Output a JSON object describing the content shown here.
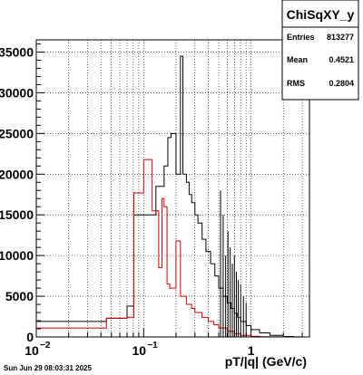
{
  "chart_data": {
    "type": "histogram",
    "x_scale": "log",
    "xlim": [
      0.01,
      3.5
    ],
    "ylim": [
      0,
      36500
    ],
    "xlabel": "pT/|q| (GeV/c)",
    "ylabel": "",
    "x_ticks": [
      {
        "value": 0.01,
        "label": "10",
        "exponent": "−2"
      },
      {
        "value": 0.1,
        "label": "10",
        "exponent": "−1"
      },
      {
        "value": 1,
        "label": "1",
        "exponent": ""
      }
    ],
    "y_ticks": [
      0,
      5000,
      10000,
      15000,
      20000,
      25000,
      30000,
      35000
    ],
    "y_tick_labels": [
      "0",
      "5000",
      "10000",
      "15000",
      "20000",
      "25000",
      "30000",
      "35000"
    ],
    "grid": true,
    "stats_box": {
      "title": "ChiSqXY_y",
      "rows": [
        {
          "label": "Entries",
          "value": "813277"
        },
        {
          "label": "Mean",
          "value": "0.4521"
        },
        {
          "label": "RMS",
          "value": "0.2804"
        }
      ]
    },
    "series": [
      {
        "color": "#000000",
        "edges": [
          0.01,
          0.045,
          0.07,
          0.081,
          0.1,
          0.13,
          0.155,
          0.168,
          0.18,
          0.2,
          0.22,
          0.232,
          0.25,
          0.265,
          0.28,
          0.3,
          0.32,
          0.35,
          0.38,
          0.42,
          0.46,
          0.5,
          0.55,
          0.6,
          0.65,
          0.7,
          0.75,
          0.8,
          0.9,
          1.0,
          1.2,
          1.5,
          2.0,
          2.5,
          3.0
        ],
        "values": [
          1900,
          2300,
          3800,
          15000,
          15000,
          18500,
          21000,
          24500,
          25000,
          20000,
          34500,
          20000,
          19000,
          17500,
          16500,
          15000,
          14000,
          12000,
          10500,
          9000,
          7500,
          6000,
          5000,
          4200,
          3500,
          2900,
          2400,
          1900,
          1400,
          900,
          500,
          200,
          50,
          10
        ]
      },
      {
        "color": "#cc0000",
        "edges": [
          0.01,
          0.045,
          0.07,
          0.081,
          0.1,
          0.12,
          0.138,
          0.148,
          0.155,
          0.165,
          0.175,
          0.2,
          0.22,
          0.25,
          0.28,
          0.3,
          0.35,
          0.4,
          0.45,
          0.5,
          0.6,
          0.7,
          0.8,
          1.0,
          1.2,
          1.5,
          2.0
        ],
        "values": [
          1100,
          2300,
          2400,
          17700,
          21800,
          15500,
          8500,
          17000,
          16000,
          6500,
          6000,
          11800,
          5000,
          4000,
          3500,
          3000,
          2400,
          1900,
          1500,
          1100,
          700,
          400,
          200,
          80,
          30,
          10
        ]
      }
    ],
    "spikes": [
      {
        "x": 0.52,
        "y": 18000
      },
      {
        "x": 0.55,
        "y": 15000
      },
      {
        "x": 0.58,
        "y": 10000
      },
      {
        "x": 0.61,
        "y": 13000
      },
      {
        "x": 0.64,
        "y": 11000
      },
      {
        "x": 0.67,
        "y": 9000
      },
      {
        "x": 0.7,
        "y": 10000
      },
      {
        "x": 0.73,
        "y": 8000
      },
      {
        "x": 0.76,
        "y": 7000
      },
      {
        "x": 0.8,
        "y": 6500
      },
      {
        "x": 0.85,
        "y": 5000
      },
      {
        "x": 0.9,
        "y": 4200
      }
    ]
  },
  "footer": {
    "timestamp": "Sun Jun 29 08:03:31 2025"
  }
}
